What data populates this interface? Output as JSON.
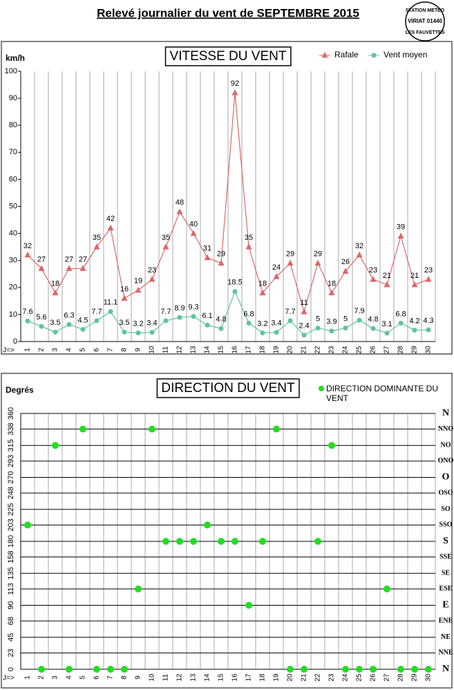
{
  "page": {
    "title": "Relevé journalier du vent de SEPTEMBRE 2015",
    "stamp": [
      "STATION METEO",
      "VIRIAT 01440",
      "LES FAUVETTES"
    ]
  },
  "chart_data": [
    {
      "type": "line",
      "title": "VITESSE DU VENT",
      "y_label": "km/h",
      "x_label": "J=>",
      "categories": [
        "1",
        "2",
        "3",
        "4",
        "5",
        "6",
        "7",
        "8",
        "9",
        "10",
        "11",
        "12",
        "13",
        "14",
        "15",
        "16",
        "17",
        "18",
        "19",
        "20",
        "21",
        "22",
        "23",
        "24",
        "25",
        "26",
        "27",
        "28",
        "29",
        "30"
      ],
      "series": [
        {
          "name": "Rafale",
          "color": "#e06666",
          "marker": "triangle",
          "values": [
            32,
            27,
            18,
            27,
            27,
            35,
            42,
            16,
            19,
            23,
            35,
            48,
            40,
            31,
            29,
            92,
            35,
            18,
            24,
            29,
            11,
            29,
            18,
            26,
            32,
            23,
            21,
            39,
            21,
            23
          ]
        },
        {
          "name": "Vent moyen",
          "color": "#5fc49a",
          "marker": "circle",
          "values": [
            7.6,
            5.6,
            3.5,
            6.3,
            4.5,
            7.7,
            11.1,
            3.5,
            3.2,
            3.4,
            7.7,
            8.9,
            9.3,
            6.1,
            4.8,
            18.5,
            6.8,
            3.2,
            3.4,
            7.7,
            2.4,
            5,
            3.9,
            5,
            7.9,
            4.8,
            3.1,
            6.8,
            4.2,
            4.3
          ]
        }
      ],
      "ylim": [
        0,
        100
      ],
      "yticks": [
        0,
        10,
        20,
        30,
        40,
        50,
        60,
        70,
        80,
        90,
        100
      ],
      "grid": "x",
      "legend": "top-right"
    },
    {
      "type": "scatter",
      "title": "DIRECTION DU VENT",
      "y_label": "Degrés",
      "x_label": "J=>",
      "categories": [
        "1",
        "2",
        "3",
        "4",
        "5",
        "6",
        "7",
        "8",
        "9",
        "10",
        "11",
        "12",
        "13",
        "14",
        "15",
        "16",
        "17",
        "18",
        "19",
        "20",
        "21",
        "22",
        "23",
        "24",
        "25",
        "26",
        "27",
        "28",
        "29",
        "30"
      ],
      "series": [
        {
          "name": "DIRECTION DOMINANTE DU VENT",
          "color": "#22dd22",
          "marker": "circle",
          "values": [
            203,
            0,
            315,
            0,
            338,
            0,
            0,
            0,
            113,
            338,
            180,
            180,
            180,
            203,
            180,
            180,
            90,
            180,
            338,
            0,
            0,
            180,
            315,
            0,
            0,
            0,
            113,
            0,
            0,
            0
          ]
        }
      ],
      "ylim": [
        0,
        360
      ],
      "yticks": [
        0,
        23,
        45,
        68,
        90,
        113,
        135,
        158,
        180,
        203,
        225,
        248,
        270,
        293,
        315,
        338,
        360
      ],
      "direction_labels": [
        "N",
        "NNE",
        "NE",
        "ENE",
        "E",
        "ESE",
        "SE",
        "SSE",
        "S",
        "SSO",
        "SO",
        "OSO",
        "O",
        "ONO",
        "NO",
        "NNO",
        "N"
      ],
      "grid": "both",
      "legend": "top-right"
    }
  ]
}
